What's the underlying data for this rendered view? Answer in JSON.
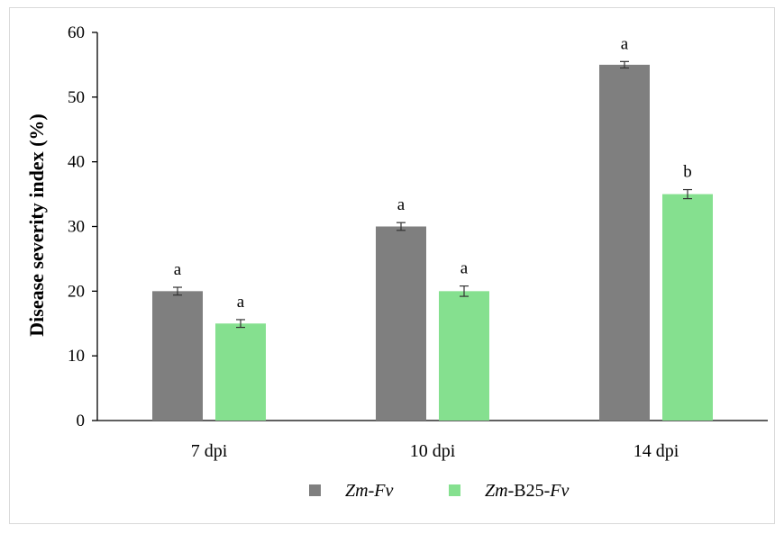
{
  "chart_data": {
    "type": "bar",
    "title": "",
    "xlabel": "",
    "ylabel": "Disease severity index (%)",
    "ylim": [
      0,
      60
    ],
    "yticks": [
      0,
      10,
      20,
      30,
      40,
      50,
      60
    ],
    "categories": [
      "7 dpi",
      "10 dpi",
      "14 dpi"
    ],
    "series": [
      {
        "name_parts": [
          {
            "text": "Zm",
            "italic": true
          },
          {
            "text": "-",
            "italic": false
          },
          {
            "text": "Fv",
            "italic": true
          }
        ],
        "color": "#7f7f7f",
        "values": [
          20,
          30,
          55
        ],
        "errors": [
          0.6,
          0.6,
          0.5
        ],
        "significance": [
          "a",
          "a",
          "a"
        ]
      },
      {
        "name_parts": [
          {
            "text": "Zm",
            "italic": true
          },
          {
            "text": "-B25-",
            "italic": false
          },
          {
            "text": "Fv",
            "italic": true
          }
        ],
        "color": "#85e08f",
        "values": [
          15,
          20,
          35
        ],
        "errors": [
          0.6,
          0.8,
          0.7
        ],
        "significance": [
          "a",
          "a",
          "b"
        ]
      }
    ],
    "legend": "bottom",
    "grid": false
  }
}
